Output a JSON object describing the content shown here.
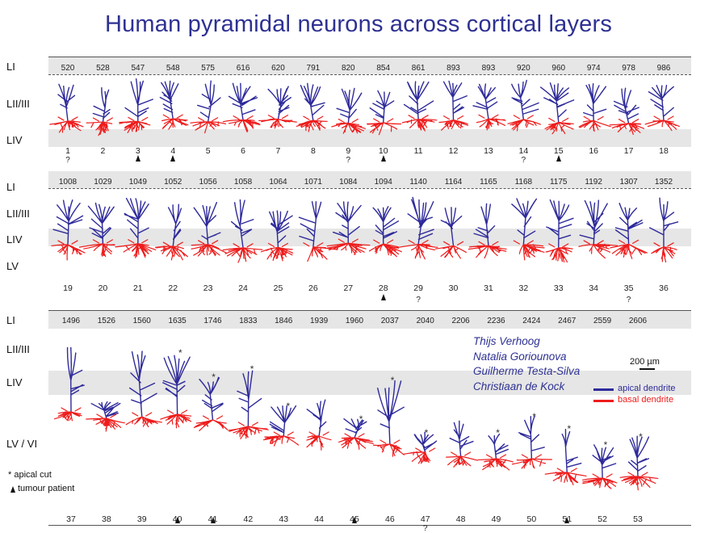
{
  "title": "Human pyramidal neurons across cortical layers",
  "layer_labels": {
    "row1": [
      "LI",
      "LII/III",
      "LIV"
    ],
    "row2": [
      "LI",
      "LII/III",
      "LIV",
      "LV"
    ],
    "row3": [
      "LI",
      "LII/III",
      "LIV",
      "LV / VI"
    ]
  },
  "rows": [
    {
      "depths": [
        "520",
        "528",
        "547",
        "548",
        "575",
        "616",
        "620",
        "791",
        "820",
        "854",
        "861",
        "893",
        "893",
        "920",
        "960",
        "974",
        "978",
        "986"
      ],
      "numbers": [
        "1",
        "2",
        "3",
        "4",
        "5",
        "6",
        "7",
        "8",
        "9",
        "10",
        "11",
        "12",
        "13",
        "14",
        "15",
        "16",
        "17",
        "18"
      ],
      "question_marks": [
        "1",
        "9",
        "14"
      ],
      "tumour_patients": [
        "3",
        "4",
        "10",
        "15"
      ]
    },
    {
      "depths": [
        "1008",
        "1029",
        "1049",
        "1052",
        "1056",
        "1058",
        "1064",
        "1071",
        "1084",
        "1094",
        "1140",
        "1164",
        "1165",
        "1168",
        "1175",
        "1192",
        "1307",
        "1352"
      ],
      "numbers": [
        "19",
        "20",
        "21",
        "22",
        "23",
        "24",
        "25",
        "26",
        "27",
        "28",
        "29",
        "30",
        "31",
        "32",
        "33",
        "34",
        "35",
        "36"
      ],
      "question_marks": [
        "29",
        "35"
      ],
      "tumour_patients": [
        "28"
      ]
    },
    {
      "depths": [
        "1496",
        "1526",
        "1560",
        "1635",
        "1746",
        "1833",
        "1846",
        "1939",
        "1960",
        "2037",
        "2040",
        "2206",
        "2236",
        "2424",
        "2467",
        "2559",
        "2606"
      ],
      "numbers": [
        "37",
        "38",
        "39",
        "40",
        "41",
        "42",
        "43",
        "44",
        "45",
        "46",
        "47",
        "48",
        "49",
        "50",
        "51",
        "52",
        "53"
      ],
      "question_marks": [
        "47"
      ],
      "tumour_patients": [
        "40",
        "41",
        "45",
        "51"
      ]
    }
  ],
  "authors": [
    "Thijs Verhoog",
    "Natalia Goriounova",
    "Guilherme Testa-Silva",
    "Christiaan de Kock"
  ],
  "scale_bar": "200 µm",
  "legend": [
    {
      "label": "apical dendrite",
      "color": "#2e2a9a"
    },
    {
      "label": "basal dendrite",
      "color": "#ee1c1c"
    }
  ],
  "footnotes": {
    "apical_cut": "* apical cut",
    "tumour_patient": "tumour patient"
  },
  "apical_cut_marker": "*",
  "question_marker": "?"
}
